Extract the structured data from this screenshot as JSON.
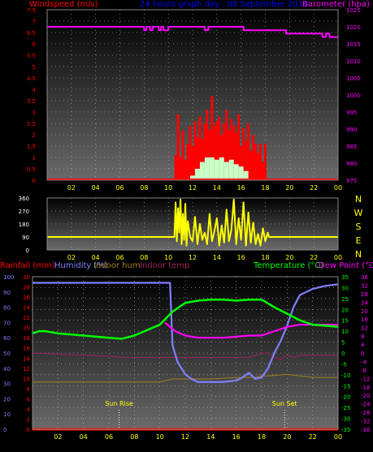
{
  "top_header": {
    "windspeed_label": "Windspeed (m/s)",
    "title": "24 hours graph day , 08 September 2014",
    "barometer_label": "Barometer (hpa)"
  },
  "direction_letters": [
    "N",
    "W",
    "S",
    "E",
    "N"
  ],
  "bottom_header": {
    "rainfall_label": "Rainfall (mm)",
    "humidity_label": "Humidity (%)",
    "indoor_hum_label": "Indoor hum",
    "indoor_temp_label": "Indoor temp",
    "temperature_label": "Temperature (°C)",
    "dewpoint_label": "Dew Point (°C)"
  },
  "annotations": {
    "sunrise": "Sun Rise",
    "sunset": "Sun Set"
  },
  "colors": {
    "windspeed": "#ff0000",
    "gust": "#ff0000",
    "windspeed_avg": "#c8ffc8",
    "barometer": "#ff00ff",
    "direction": "#ffff00",
    "humidity": "#8080ff",
    "temperature": "#00ff00",
    "dewpoint": "#ff00ff",
    "indoor_hum": "#a08020",
    "indoor_temp": "#a02060",
    "rainfall": "#ff0000",
    "title": "#0000ff"
  },
  "chart_data": [
    {
      "type": "bar",
      "title": "24 hours graph day , 08 September 2014",
      "x_ticks": [
        "02",
        "04",
        "06",
        "08",
        "10",
        "12",
        "14",
        "16",
        "18",
        "20",
        "22",
        "00"
      ],
      "xlim": [
        0,
        24
      ],
      "y_left_label": "Windspeed (m/s)",
      "y_left_ticks": [
        "0",
        "0.5",
        "1",
        "1.5",
        "2",
        "2.5",
        "3",
        "3.5",
        "4",
        "4.5",
        "5",
        "5.5",
        "6",
        "6.5",
        "7",
        "7.5"
      ],
      "y_left_lim": [
        0,
        7.5
      ],
      "y_right_label": "Barometer (hpa)",
      "y_right_ticks": [
        "975",
        "980",
        "985",
        "990",
        "995",
        "1000",
        "1005",
        "1010",
        "1015",
        "1020",
        "1025"
      ],
      "y_right_lim": [
        975,
        1025
      ],
      "series": [
        {
          "name": "Windspeed (m/s)",
          "hours": [
            10.6,
            10.8,
            11.0,
            11.2,
            11.4,
            11.6,
            11.8,
            12.0,
            12.2,
            12.4,
            12.6,
            12.8,
            13.0,
            13.2,
            13.4,
            13.6,
            13.8,
            14.0,
            14.2,
            14.4,
            14.6,
            14.8,
            15.0,
            15.2,
            15.4,
            15.6,
            15.8,
            16.0,
            16.2,
            16.4,
            16.6,
            16.8,
            17.0,
            17.2,
            17.4,
            17.6,
            17.8,
            18.0
          ],
          "values": [
            1.1,
            2.9,
            1.0,
            2.2,
            0.9,
            1.6,
            2.4,
            1.5,
            2.6,
            1.9,
            2.8,
            1.8,
            2.5,
            3.1,
            2.2,
            3.7,
            2.4,
            2.6,
            2.8,
            2.0,
            2.5,
            3.1,
            2.2,
            2.7,
            2.4,
            2.1,
            2.9,
            1.5,
            2.3,
            1.7,
            2.5,
            1.3,
            2.0,
            1.6,
            1.2,
            1.6,
            0.8,
            1.6
          ]
        },
        {
          "name": "Average windspeed",
          "hours": [
            12.0,
            12.4,
            12.8,
            13.2,
            13.6,
            14.0,
            14.4,
            14.8,
            15.2,
            15.6,
            16.0,
            16.4
          ],
          "values": [
            0.2,
            0.5,
            0.8,
            1.0,
            1.0,
            0.9,
            1.0,
            0.8,
            0.9,
            0.7,
            0.6,
            0.4
          ]
        },
        {
          "name": "Barometer (hpa)",
          "hours": [
            0,
            7.7,
            8.0,
            8.2,
            8.5,
            8.7,
            9.2,
            9.4,
            9.6,
            10.0,
            12.8,
            13.0,
            13.3,
            16.0,
            16.2,
            18.0,
            19.7,
            21.0,
            22.5,
            22.7,
            23.0,
            23.3,
            24.0
          ],
          "values": [
            1020,
            1020,
            1019,
            1020,
            1019,
            1020,
            1019,
            1020,
            1019,
            1020,
            1020,
            1019,
            1020,
            1020,
            1019,
            1019,
            1018,
            1018,
            1018,
            1017,
            1018,
            1017,
            1017
          ]
        }
      ]
    },
    {
      "type": "line",
      "x_ticks": [
        "02",
        "04",
        "06",
        "08",
        "10",
        "12",
        "14",
        "16",
        "18",
        "20",
        "22",
        "00"
      ],
      "xlim": [
        0,
        24
      ],
      "y_ticks": [
        "0",
        "90",
        "180",
        "270",
        "360"
      ],
      "ylim": [
        0,
        360
      ],
      "series": [
        {
          "name": "Wind direction",
          "hours": [
            0,
            10.5,
            10.6,
            10.7,
            10.8,
            10.9,
            11.0,
            11.1,
            11.2,
            11.3,
            11.4,
            11.5,
            11.6,
            11.8,
            12.0,
            12.2,
            12.4,
            12.6,
            12.8,
            13.0,
            13.2,
            13.4,
            13.6,
            13.8,
            14.0,
            14.2,
            14.4,
            14.6,
            14.8,
            15.0,
            15.2,
            15.4,
            15.6,
            15.8,
            16.0,
            16.2,
            16.4,
            16.6,
            16.8,
            17.0,
            17.2,
            17.4,
            17.6,
            17.8,
            18.0,
            18.1,
            18.2,
            18.3,
            24.0
          ],
          "values": [
            90,
            90,
            330,
            60,
            290,
            120,
            350,
            40,
            250,
            70,
            320,
            30,
            200,
            90,
            60,
            230,
            40,
            180,
            70,
            120,
            40,
            250,
            60,
            130,
            220,
            30,
            170,
            50,
            280,
            60,
            140,
            350,
            40,
            220,
            70,
            330,
            30,
            260,
            50,
            190,
            40,
            110,
            30,
            150,
            60,
            90,
            120,
            90,
            90
          ]
        }
      ]
    },
    {
      "type": "line",
      "x_ticks": [
        "02",
        "04",
        "06",
        "08",
        "10",
        "12",
        "14",
        "16",
        "18",
        "20",
        "22",
        "00"
      ],
      "xlim": [
        0,
        24
      ],
      "humidity_ticks": [
        "0",
        "10",
        "20",
        "30",
        "40",
        "50",
        "60",
        "70",
        "80",
        "90",
        "100"
      ],
      "humidity_lim": [
        0,
        100
      ],
      "rainfall_ticks": [
        "0",
        "2",
        "4",
        "6",
        "8",
        "10",
        "12",
        "14",
        "16",
        "18",
        "20",
        "22",
        "24",
        "26",
        "28",
        "30"
      ],
      "rainfall_lim": [
        0,
        30
      ],
      "temperature_ticks": [
        "-35",
        "-30",
        "-25",
        "-20",
        "-15",
        "-10",
        "-5",
        "0",
        "5",
        "10",
        "15",
        "20",
        "25",
        "30",
        "35"
      ],
      "temperature_lim": [
        -35,
        35
      ],
      "dewpoint_ticks": [
        "-36",
        "-32",
        "-28",
        "-24",
        "-20",
        "-16",
        "-12",
        "-8",
        "-4",
        "0",
        "4",
        "8",
        "12",
        "16",
        "20",
        "24",
        "28",
        "32",
        "36"
      ],
      "dewpoint_lim": [
        -36,
        36
      ],
      "sunrise_hour": 6.8,
      "sunset_hour": 19.8,
      "series": [
        {
          "name": "Humidity (%)",
          "hours": [
            0,
            10.8,
            11.0,
            11.4,
            12.0,
            12.5,
            13.0,
            14.0,
            15.0,
            16.0,
            16.5,
            17.0,
            17.5,
            18.0,
            18.5,
            19.0,
            19.5,
            20.0,
            20.5,
            21.0,
            22.0,
            23.0,
            24.0
          ],
          "values": [
            96,
            96,
            55,
            44,
            36,
            33,
            31,
            31,
            31,
            32,
            34,
            37,
            33,
            34,
            40,
            50,
            58,
            68,
            80,
            88,
            92,
            94,
            95
          ]
        },
        {
          "name": "Temperature (°C)",
          "hours": [
            0,
            0.5,
            1.0,
            2.0,
            3.0,
            4.0,
            5.0,
            6.0,
            7.0,
            8.0,
            9.0,
            10.0,
            11.0,
            12.0,
            13.0,
            14.0,
            15.0,
            16.0,
            17.0,
            18.0,
            19.0,
            20.0,
            21.0,
            22.0,
            23.0,
            24.0
          ],
          "values": [
            9,
            10,
            10,
            9,
            8.5,
            8,
            7.5,
            7,
            6.5,
            8,
            10.5,
            13,
            19,
            23,
            24,
            24.5,
            24.5,
            24,
            24.5,
            24.5,
            21,
            18,
            15,
            13,
            12.5,
            12
          ]
        },
        {
          "name": "Dew Point (°C)",
          "hours": [
            10.4,
            10.8,
            11.2,
            11.6,
            12.0,
            13.0,
            14.0,
            15.0,
            16.0,
            17.0,
            18.0,
            18.5,
            19.0,
            20.0,
            21.0,
            22.0,
            23.0,
            24.0
          ],
          "values": [
            14,
            12,
            10,
            9,
            8,
            7,
            7,
            7,
            7.5,
            8,
            8,
            9,
            10,
            12,
            13,
            13,
            13,
            13
          ]
        },
        {
          "name": "Indoor hum",
          "hours": [
            0,
            5,
            8,
            10,
            11,
            14,
            16,
            17,
            17.5,
            18.0,
            18.5,
            20.0,
            21.0,
            22.0,
            24.0
          ],
          "values": [
            31,
            31,
            31,
            31,
            33,
            33,
            34,
            34,
            34,
            35,
            35,
            36,
            35,
            34,
            34
          ]
        },
        {
          "name": "Indoor temp",
          "hours": [
            0,
            2,
            4,
            6,
            7,
            10,
            12,
            14,
            16,
            17.0,
            17.5,
            18.0,
            18.5,
            19.0,
            19.5,
            20.0,
            20.5,
            21.0,
            22.0,
            23.0,
            24.0
          ],
          "values": [
            0,
            -0.5,
            -1,
            -1.5,
            -2,
            -2,
            -2,
            -2,
            -2,
            -2,
            -1,
            0,
            0,
            -2,
            -3,
            -1,
            -2,
            -1,
            -1,
            -1,
            -1
          ]
        },
        {
          "name": "Rainfall (mm)",
          "hours": [
            0,
            24
          ],
          "values": [
            0,
            0
          ]
        }
      ]
    }
  ]
}
